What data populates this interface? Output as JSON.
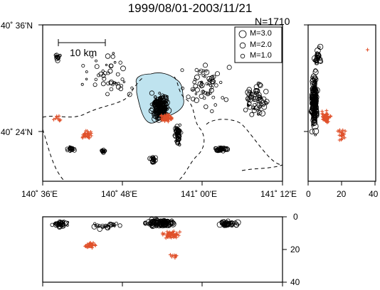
{
  "title": "1999/08/01-2003/11/21",
  "count_label": "N=1710",
  "map": {
    "lat_labels": [
      "40˚ 36'N",
      "40˚ 24'N"
    ],
    "lon_labels": [
      "140˚ 36'E",
      "140˚ 48'E",
      "141˚ 00'E",
      "141˚ 12'E"
    ],
    "scale_label": "10 km",
    "volcano_fill": "#bfe3ef",
    "lowfreq_color": "#e0502a"
  },
  "legend": [
    {
      "label": "M=3.0"
    },
    {
      "label": "M=2.0"
    },
    {
      "label": "M=1.0"
    }
  ],
  "depth_panel_x_ticks": [
    "0",
    "20",
    "40"
  ],
  "depth_panel_y_ticks": [
    "0",
    "20",
    "40"
  ]
}
